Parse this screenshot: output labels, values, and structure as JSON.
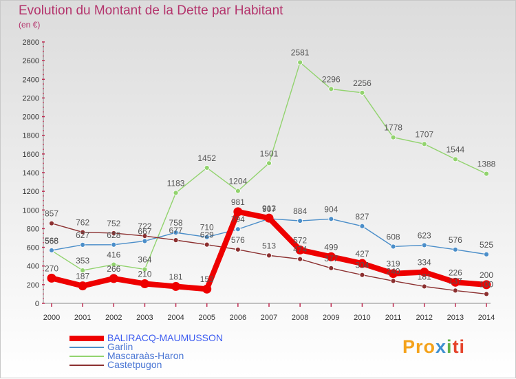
{
  "header": {
    "title": "Evolution du Montant de la Dette par Habitant",
    "subtitle": "(en €)"
  },
  "logo": {
    "text": "Proxiti",
    "colors": [
      "#f4a21b",
      "#3d8fd0",
      "#63b246",
      "#e5442c"
    ]
  },
  "chart_data": {
    "type": "line",
    "categories": [
      "2000",
      "2001",
      "2002",
      "2003",
      "2004",
      "2005",
      "2006",
      "2007",
      "2008",
      "2009",
      "2010",
      "2011",
      "2012",
      "2013",
      "2014"
    ],
    "ylim": [
      0,
      2800
    ],
    "yticks": [
      0,
      200,
      400,
      600,
      800,
      1000,
      1200,
      1400,
      1600,
      1800,
      2000,
      2200,
      2400,
      2600,
      2800
    ],
    "grid": false,
    "legend_position": "bottom",
    "series": [
      {
        "name": "BALIRACQ-MAUMUSSON",
        "color": "#ee0000",
        "values": [
          270,
          187,
          266,
          210,
          181,
          153,
          981,
          913,
          572,
          499,
          427,
          319,
          334,
          226,
          200
        ],
        "labels": [
          "270",
          "187",
          "266",
          "210",
          "181",
          "153",
          "981",
          "913",
          "572",
          "499",
          "427",
          "319",
          "334",
          "226",
          "200"
        ],
        "width": 8
      },
      {
        "name": "Garlin",
        "color": "#4b8ec9",
        "values": [
          568,
          627,
          628,
          667,
          758,
          710,
          794,
          907,
          884,
          904,
          827,
          608,
          623,
          576,
          525
        ],
        "labels": [
          "568",
          "627",
          "628",
          "667",
          "758",
          "710",
          "794",
          "907",
          "884",
          "904",
          "827",
          "608",
          "623",
          "576",
          "525"
        ],
        "width": 1.4
      },
      {
        "name": "Mascaraàs-Haron",
        "color": "#92d36e",
        "values": [
          565,
          353,
          416,
          364,
          1183,
          1452,
          1204,
          1501,
          2581,
          2296,
          2256,
          1778,
          1707,
          1544,
          1388
        ],
        "labels": [
          "565",
          "353",
          "416",
          "364",
          "1183",
          "1452",
          "1204",
          "1501",
          "2581",
          "2296",
          "2256",
          "1778",
          "1707",
          "1544",
          "1388"
        ],
        "width": 1.4
      },
      {
        "name": "Castetpugon",
        "color": "#8b2f2f",
        "values": [
          857,
          762,
          752,
          722,
          677,
          629,
          576,
          513,
          474,
          377,
          304,
          240,
          181,
          137,
          100
        ],
        "labels": [
          "857",
          "762",
          "752",
          "722",
          "677",
          "629",
          "576",
          "513",
          "474",
          "377",
          "304",
          "240",
          "181",
          "137",
          "100"
        ],
        "width": 1.4
      }
    ]
  }
}
